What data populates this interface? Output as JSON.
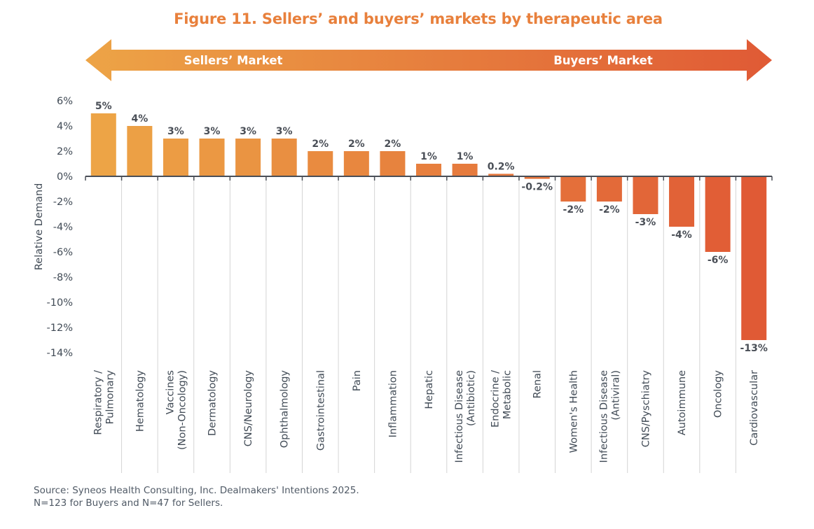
{
  "chart_data": {
    "type": "bar",
    "title": "Figure 11. Sellers’ and buyers’ markets by therapeutic area",
    "arrow": {
      "left_label": "Sellers’ Market",
      "right_label": "Buyers’ Market",
      "color_start": "#EDA446",
      "color_end": "#E05A35"
    },
    "xlabel": "",
    "ylabel": "Relative Demand",
    "ylim": [
      -14,
      6
    ],
    "yticks": [
      6,
      4,
      2,
      0,
      -2,
      -4,
      -6,
      -8,
      -10,
      -12,
      -14
    ],
    "ytick_labels": [
      "6%",
      "4%",
      "2%",
      "0%",
      "-2%",
      "-4%",
      "-6%",
      "-8%",
      "-10%",
      "-12%",
      "-14%"
    ],
    "grid": false,
    "categories": [
      [
        "Respiratory /",
        "Pulmonary"
      ],
      [
        "Hematology"
      ],
      [
        "Vaccines",
        "(Non-Oncology)"
      ],
      [
        "Dermatology"
      ],
      [
        "CNS/Neurology"
      ],
      [
        "Ophthalmology"
      ],
      [
        "Gastrointestinal"
      ],
      [
        "Pain"
      ],
      [
        "Inflammation"
      ],
      [
        "Hepatic"
      ],
      [
        "Infectious Disease",
        "(Antibiotic)"
      ],
      [
        "Endocrine /",
        "Metabolic"
      ],
      [
        "Renal"
      ],
      [
        "Women's Health"
      ],
      [
        "Infectious Disease",
        "(Antiviral)"
      ],
      [
        "CNS/Pyschiatry"
      ],
      [
        "Autoimmune"
      ],
      [
        "Oncology"
      ],
      [
        "Cardiovascular"
      ]
    ],
    "values": [
      5,
      4,
      3,
      3,
      3,
      3,
      2,
      2,
      2,
      1,
      1,
      0.2,
      -0.2,
      -2,
      -2,
      -3,
      -4,
      -6,
      -13
    ],
    "data_labels": [
      "5%",
      "4%",
      "3%",
      "3%",
      "3%",
      "3%",
      "2%",
      "2%",
      "2%",
      "1%",
      "1%",
      "0.2%",
      "-0.2%",
      "-2%",
      "-2%",
      "-3%",
      "-4%",
      "-6%",
      "-13%"
    ],
    "bar_color_start": "#EDA446",
    "bar_color_end": "#E05A35",
    "legend": "none"
  },
  "footer": {
    "source_line1": "Source: Syneos Health Consulting, Inc. Dealmakers' Intentions 2025.",
    "source_line2": "N=123 for Buyers and N=47 for Sellers."
  }
}
